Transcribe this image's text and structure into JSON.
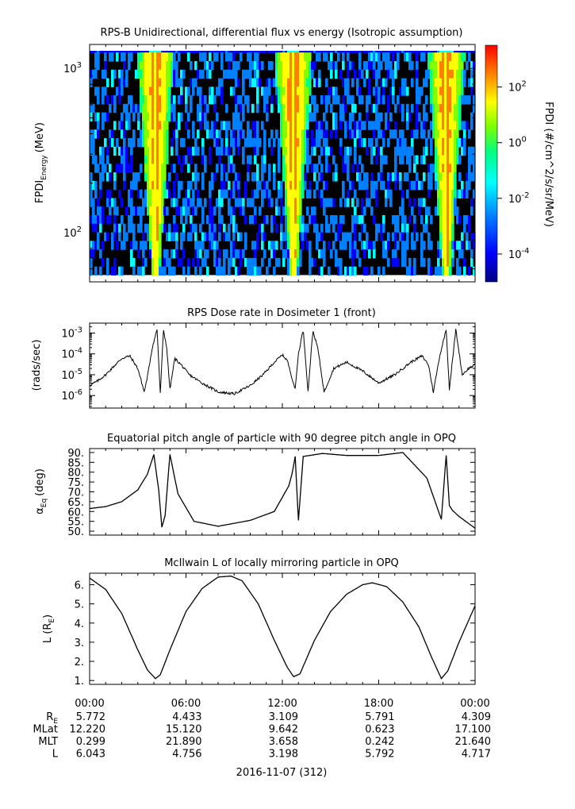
{
  "chart_data": [
    {
      "type": "heatmap",
      "title": "RPS-B  Unidirectional, differential flux vs energy (Isotropic assumption)",
      "ylabel": "FPDI",
      "ylabel_sub": "Energy",
      "ylabel_unit": "(MeV)",
      "yscale": "log",
      "ylim": [
        50,
        1400
      ],
      "yticks": [
        {
          "v": 100,
          "base": "10",
          "exp": "2"
        },
        {
          "v": 1000,
          "base": "10",
          "exp": "3"
        }
      ],
      "xlim_hours": [
        0,
        24
      ],
      "energy_range": [
        55,
        1250
      ],
      "radiation_belt_entries_hours": [
        3.7,
        4.5,
        12.3,
        13.1,
        21.8,
        22.6
      ],
      "colorbar": {
        "label": "FPDI (#/cm^2/s/sr/MeV)",
        "scale": "log",
        "range_log10": [
          -5,
          3.5
        ],
        "ticks": [
          {
            "base": "10",
            "exp": "2",
            "v": 2
          },
          {
            "base": "10",
            "exp": "0",
            "v": 0
          },
          {
            "base": "10",
            "exp": "-2",
            "v": -2
          },
          {
            "base": "10",
            "exp": "-4",
            "v": -4
          }
        ],
        "colors": [
          "#000080",
          "#0000ff",
          "#0080ff",
          "#00ffff",
          "#00ff80",
          "#80ff00",
          "#ffff00",
          "#ff8000",
          "#ff0000"
        ]
      }
    },
    {
      "type": "line",
      "title": "RPS  Dose rate in Dosimeter 1 (front)",
      "ylabel": "(rads/sec)",
      "yscale": "log",
      "ylim": [
        2.5e-07,
        0.003
      ],
      "yticks": [
        {
          "v": 0.001,
          "base": "10",
          "exp": "-3"
        },
        {
          "v": 0.0001,
          "base": "10",
          "exp": "-4"
        },
        {
          "v": 1e-05,
          "base": "10",
          "exp": "-5"
        },
        {
          "v": 1e-06,
          "base": "10",
          "exp": "-6"
        }
      ],
      "x_hours": [
        0.0,
        0.5,
        1.0,
        1.5,
        2.0,
        2.5,
        3.0,
        3.4,
        3.6,
        3.9,
        4.2,
        4.4,
        4.6,
        4.8,
        5.0,
        5.3,
        5.7,
        6.2,
        7.0,
        8.0,
        9.0,
        10.0,
        10.8,
        11.5,
        12.0,
        12.3,
        12.8,
        13.0,
        13.3,
        13.6,
        13.9,
        14.2,
        14.6,
        15.2,
        16.0,
        17.0,
        18.0,
        19.0,
        20.0,
        20.7,
        21.1,
        21.4,
        21.8,
        22.2,
        22.4,
        22.8,
        23.2,
        23.6,
        24.0
      ],
      "values": [
        3e-06,
        5e-06,
        1e-05,
        2.5e-05,
        6e-05,
        8e-05,
        2e-05,
        1.5e-06,
        8e-06,
        0.0002,
        0.0015,
        1.2e-06,
        0.0014,
        0.0002,
        2e-06,
        6e-05,
        3e-05,
        1e-05,
        4e-06,
        1.5e-06,
        1.2e-06,
        3e-06,
        1e-05,
        4e-05,
        9e-05,
        5e-05,
        2e-06,
        0.0001,
        0.0015,
        1.5e-06,
        0.0013,
        0.0002,
        1.5e-06,
        2e-05,
        4e-05,
        1.5e-05,
        4e-06,
        1e-05,
        4e-05,
        8e-05,
        3e-05,
        1.5e-06,
        8e-05,
        0.0015,
        2e-06,
        0.0015,
        1e-05,
        2e-05,
        3e-05
      ]
    },
    {
      "type": "line",
      "title": "Equatorial pitch angle of particle with 90 degree pitch angle in OPQ",
      "ylabel": "α",
      "ylabel_sub": "Eq",
      "ylabel_unit": "(deg)",
      "ylim": [
        48,
        92
      ],
      "yticks": [
        90,
        85,
        80,
        75,
        70,
        65,
        60,
        55,
        50
      ],
      "ytick_labels": [
        "90.",
        "85.",
        "80.",
        "75.",
        "70.",
        "65.",
        "60.",
        "55.",
        "50."
      ],
      "x_hours": [
        0.0,
        1.0,
        2.0,
        3.0,
        3.6,
        4.0,
        4.3,
        4.5,
        4.7,
        5.0,
        5.5,
        6.5,
        8.0,
        10.0,
        11.5,
        12.4,
        12.6,
        12.8,
        13.0,
        13.3,
        14.5,
        16.0,
        18.0,
        19.5,
        21.0,
        21.9,
        22.2,
        22.4,
        22.6,
        23.0,
        24.0
      ],
      "values": [
        61.5,
        62.5,
        65.0,
        71.0,
        79.0,
        89.0,
        71.0,
        52.0,
        58.0,
        89.0,
        69.0,
        55.0,
        52.5,
        55.5,
        60.0,
        73.0,
        79.0,
        88.0,
        55.5,
        88.0,
        89.5,
        88.5,
        88.5,
        90.0,
        77.0,
        56.0,
        88.5,
        63.0,
        60.5,
        57.5,
        51.5
      ]
    },
    {
      "type": "line",
      "title": "McIlwain L of locally mirroring particle in OPQ",
      "ylabel": "L (R",
      "ylabel_sub": "E",
      "ylabel_unit": ")",
      "ylim": [
        0.8,
        6.6
      ],
      "yticks": [
        6,
        5,
        4,
        3,
        2,
        1
      ],
      "ytick_labels": [
        "6.",
        "5.",
        "4.",
        "3.",
        "2.",
        "1."
      ],
      "x_hours": [
        0.0,
        1.0,
        2.0,
        3.0,
        3.6,
        4.1,
        4.4,
        5.0,
        6.0,
        7.0,
        8.0,
        8.8,
        9.5,
        10.5,
        11.5,
        12.3,
        12.7,
        13.1,
        14.0,
        15.0,
        16.0,
        17.0,
        17.6,
        18.5,
        19.5,
        20.5,
        21.3,
        21.9,
        22.3,
        23.0,
        24.0
      ],
      "values": [
        6.35,
        5.75,
        4.5,
        2.6,
        1.55,
        1.1,
        1.3,
        2.6,
        4.6,
        5.8,
        6.4,
        6.45,
        6.2,
        5.0,
        3.1,
        1.7,
        1.2,
        1.35,
        3.1,
        4.6,
        5.5,
        6.0,
        6.1,
        5.9,
        5.1,
        3.8,
        2.2,
        1.1,
        1.5,
        3.0,
        4.9
      ]
    }
  ],
  "time_axis": {
    "tick_labels": [
      "00:00",
      "06:00",
      "12:00",
      "18:00",
      "00:00"
    ],
    "tick_hours": [
      0,
      6,
      12,
      18,
      24
    ],
    "date_label": "2016-11-07 (312)"
  },
  "ephemeris": {
    "rows": [
      {
        "label": "R",
        "label_sub": "E",
        "values": [
          "5.772",
          "4.433",
          "3.109",
          "5.791",
          "4.309"
        ]
      },
      {
        "label": "MLat",
        "label_sub": "",
        "values": [
          "12.220",
          "15.120",
          "9.642",
          "0.623",
          "17.100"
        ]
      },
      {
        "label": "MLT",
        "label_sub": "",
        "values": [
          "0.299",
          "21.890",
          "3.658",
          "0.242",
          "21.640"
        ]
      },
      {
        "label": "L",
        "label_sub": "",
        "values": [
          "6.043",
          "4.756",
          "3.198",
          "5.792",
          "4.717"
        ]
      }
    ]
  }
}
